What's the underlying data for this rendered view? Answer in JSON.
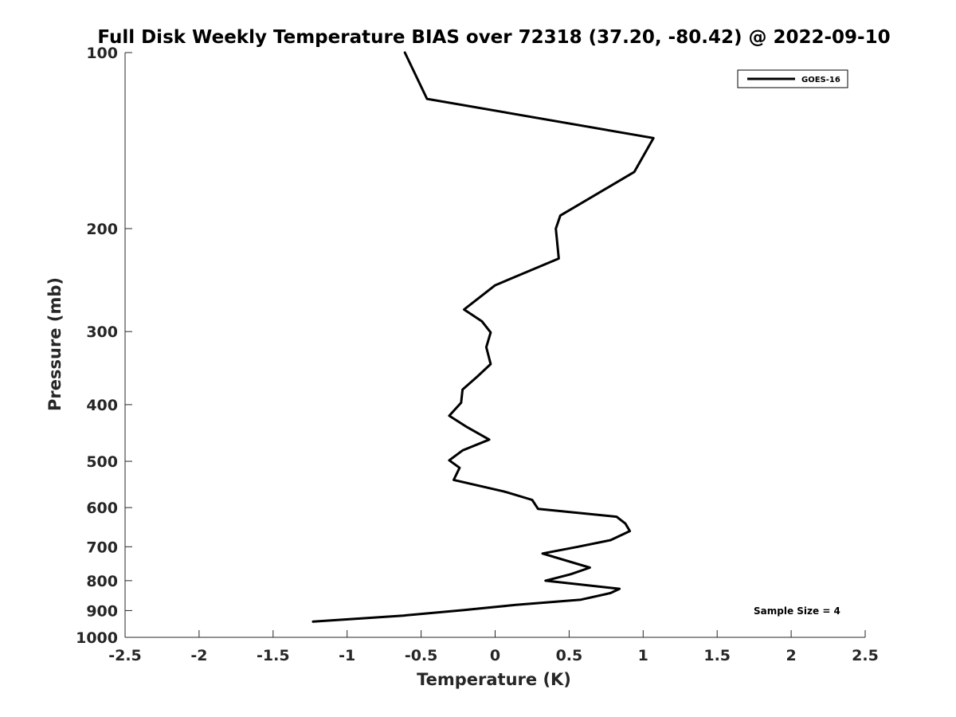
{
  "chart_data": {
    "type": "line",
    "title": "Full Disk Weekly Temperature BIAS over 72318 (37.20, -80.42) @ 2022-09-10",
    "xlabel": "Temperature (K)",
    "ylabel": "Pressure (mb)",
    "xlim": [
      -2.5,
      2.5
    ],
    "ylim": [
      1000,
      100
    ],
    "y_scale": "log",
    "y_reversed": true,
    "x_ticks": [
      "-2.5",
      "-2",
      "-1.5",
      "-1",
      "-0.5",
      "0",
      "0.5",
      "1",
      "1.5",
      "2",
      "2.5"
    ],
    "y_ticks": [
      "100",
      "200",
      "300",
      "400",
      "500",
      "600",
      "700",
      "800",
      "900",
      "1000"
    ],
    "grid": false,
    "legend": {
      "position": "top-right",
      "entries": [
        "GOES-16"
      ]
    },
    "annotation": "Sample Size = 4",
    "series": [
      {
        "name": "GOES-16",
        "color": "#000000",
        "points": [
          {
            "x": -0.61,
            "p": 100
          },
          {
            "x": -0.46,
            "p": 120
          },
          {
            "x": 1.07,
            "p": 140
          },
          {
            "x": 0.94,
            "p": 160
          },
          {
            "x": 0.44,
            "p": 190
          },
          {
            "x": 0.41,
            "p": 200
          },
          {
            "x": 0.43,
            "p": 225
          },
          {
            "x": 0.0,
            "p": 250
          },
          {
            "x": -0.21,
            "p": 275
          },
          {
            "x": -0.09,
            "p": 288
          },
          {
            "x": -0.03,
            "p": 301
          },
          {
            "x": -0.06,
            "p": 319
          },
          {
            "x": -0.03,
            "p": 341
          },
          {
            "x": -0.12,
            "p": 358
          },
          {
            "x": -0.22,
            "p": 377
          },
          {
            "x": -0.23,
            "p": 397
          },
          {
            "x": -0.31,
            "p": 418
          },
          {
            "x": -0.19,
            "p": 437
          },
          {
            "x": -0.04,
            "p": 459
          },
          {
            "x": -0.22,
            "p": 479
          },
          {
            "x": -0.31,
            "p": 498
          },
          {
            "x": -0.24,
            "p": 513
          },
          {
            "x": -0.28,
            "p": 538
          },
          {
            "x": 0.06,
            "p": 563
          },
          {
            "x": 0.25,
            "p": 582
          },
          {
            "x": 0.29,
            "p": 603
          },
          {
            "x": 0.82,
            "p": 622
          },
          {
            "x": 0.88,
            "p": 639
          },
          {
            "x": 0.91,
            "p": 658
          },
          {
            "x": 0.78,
            "p": 682
          },
          {
            "x": 0.56,
            "p": 700
          },
          {
            "x": 0.32,
            "p": 719
          },
          {
            "x": 0.64,
            "p": 760
          },
          {
            "x": 0.51,
            "p": 780
          },
          {
            "x": 0.34,
            "p": 800
          },
          {
            "x": 0.84,
            "p": 826
          },
          {
            "x": 0.78,
            "p": 840
          },
          {
            "x": 0.58,
            "p": 862
          },
          {
            "x": 0.14,
            "p": 880
          },
          {
            "x": -0.21,
            "p": 898
          },
          {
            "x": -0.62,
            "p": 918
          },
          {
            "x": -1.23,
            "p": 940
          }
        ]
      }
    ]
  }
}
